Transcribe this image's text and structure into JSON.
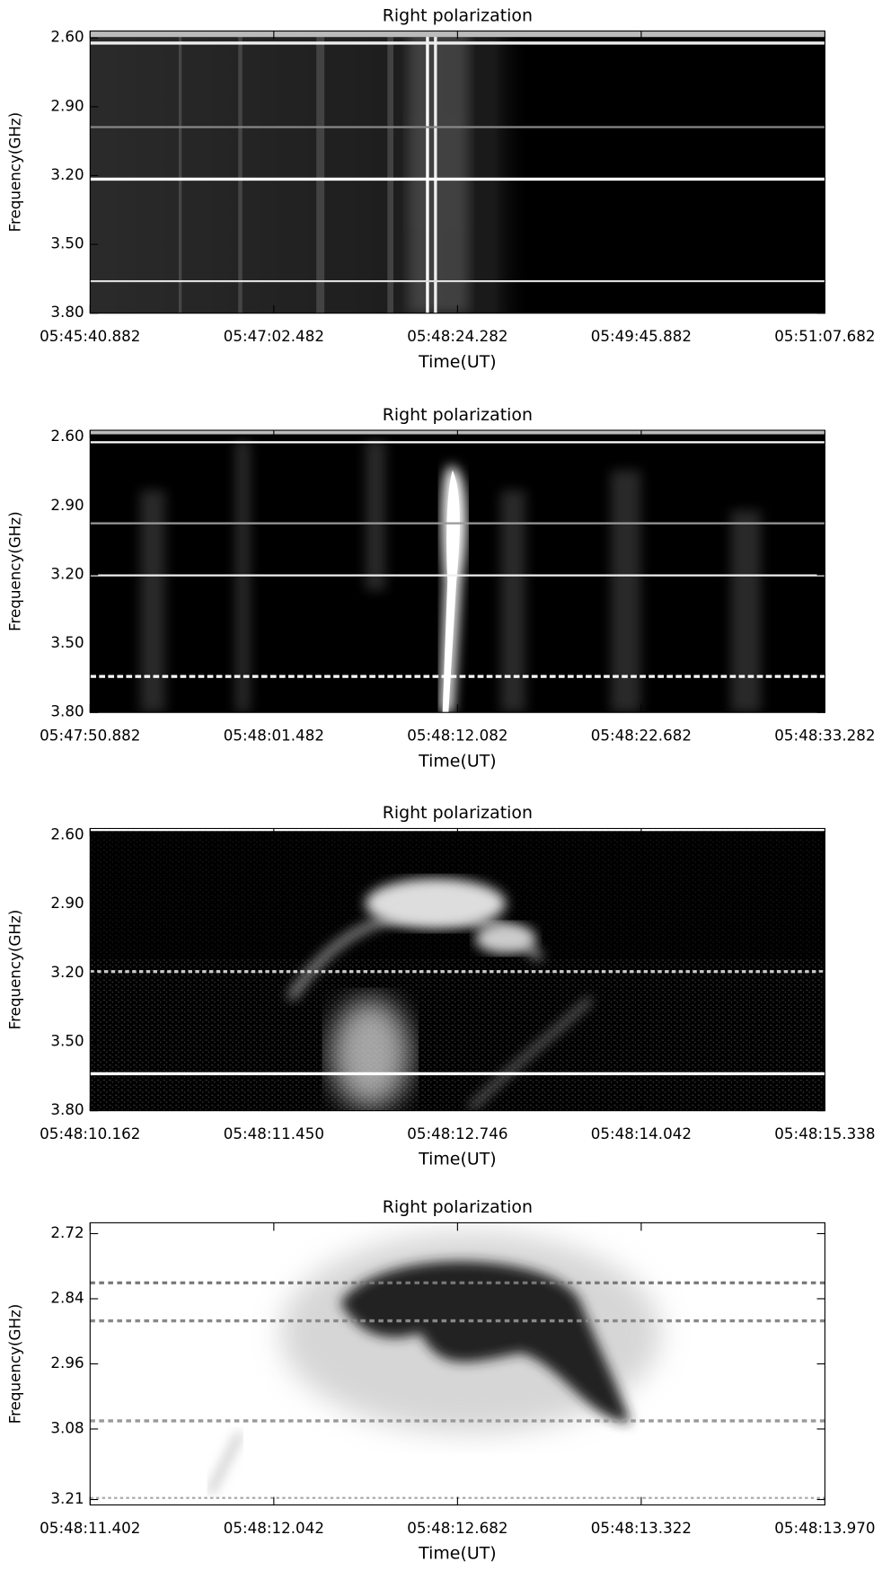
{
  "chart_data": [
    {
      "type": "spectrogram",
      "title": "Right polarization",
      "xlabel": "Time(UT)",
      "ylabel": "Frequency(GHz)",
      "xticks": [
        "05:45:40.882",
        "05:47:02.482",
        "05:48:24.282",
        "05:49:45.882",
        "05:51:07.682"
      ],
      "ylim": [
        2.57,
        3.8
      ],
      "yticks": [
        {
          "value": 2.6,
          "label": "2.60"
        },
        {
          "value": 2.9,
          "label": "2.90"
        },
        {
          "value": 3.2,
          "label": "3.20"
        },
        {
          "value": 3.5,
          "label": "3.50"
        },
        {
          "value": 3.8,
          "label": "3.80"
        }
      ]
    },
    {
      "type": "spectrogram",
      "title": "Right polarization",
      "xlabel": "Time(UT)",
      "ylabel": "Frequency(GHz)",
      "xticks": [
        "05:47:50.882",
        "05:48:01.482",
        "05:48:12.082",
        "05:48:22.682",
        "05:48:33.282"
      ],
      "ylim": [
        2.57,
        3.8
      ],
      "yticks": [
        {
          "value": 2.6,
          "label": "2.60"
        },
        {
          "value": 2.9,
          "label": "2.90"
        },
        {
          "value": 3.2,
          "label": "3.20"
        },
        {
          "value": 3.5,
          "label": "3.50"
        },
        {
          "value": 3.8,
          "label": "3.80"
        }
      ]
    },
    {
      "type": "spectrogram",
      "title": "Right polarization",
      "xlabel": "Time(UT)",
      "ylabel": "Frequency(GHz)",
      "xticks": [
        "05:48:10.162",
        "05:48:11.450",
        "05:48:12.746",
        "05:48:14.042",
        "05:48:15.338"
      ],
      "ylim": [
        2.57,
        3.8
      ],
      "yticks": [
        {
          "value": 2.6,
          "label": "2.60"
        },
        {
          "value": 2.9,
          "label": "2.90"
        },
        {
          "value": 3.2,
          "label": "3.20"
        },
        {
          "value": 3.5,
          "label": "3.50"
        },
        {
          "value": 3.8,
          "label": "3.80"
        }
      ]
    },
    {
      "type": "spectrogram",
      "title": "Right polarization",
      "xlabel": "Time(UT)",
      "ylabel": "Frequency(GHz)",
      "xticks": [
        "05:48:11.402",
        "05:48:12.042",
        "05:48:12.682",
        "05:48:13.322",
        "05:48:13.970"
      ],
      "ylim": [
        2.7,
        3.22
      ],
      "yticks": [
        2.72,
        2.84,
        2.96,
        3.08,
        3.21
      ]
    }
  ]
}
